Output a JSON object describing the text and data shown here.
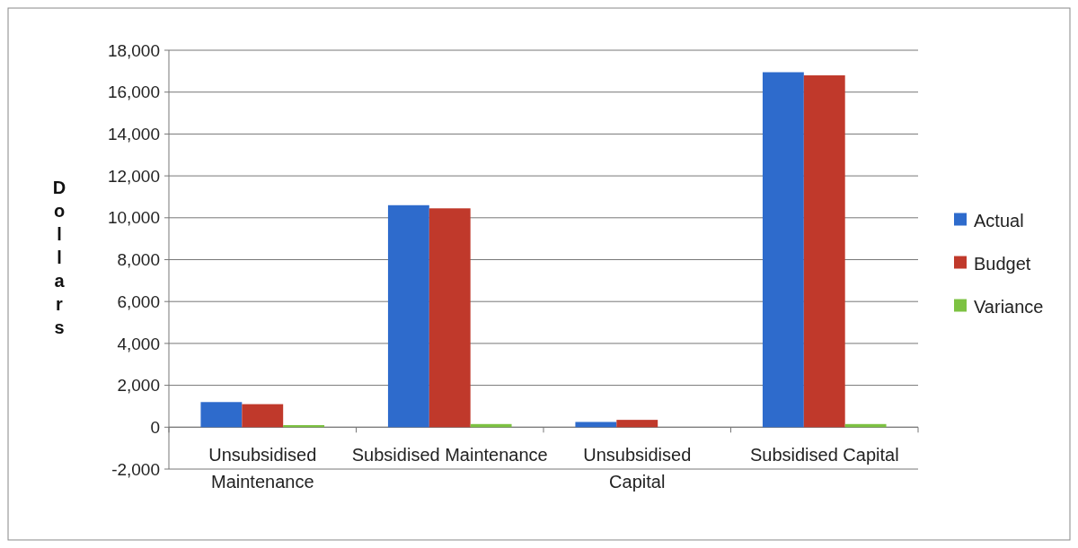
{
  "chart_data": {
    "type": "bar",
    "ylabel": "Dollars",
    "categories": [
      "Unsubsidised Maintenance",
      "Subsidised Maintenance",
      "Unsubsidised Capital",
      "Subsidised Capital"
    ],
    "series": [
      {
        "name": "Actual",
        "color": "#2e6bcc",
        "values": [
          1200,
          10600,
          250,
          16950
        ]
      },
      {
        "name": "Budget",
        "color": "#c0392b",
        "values": [
          1100,
          10450,
          350,
          16800
        ]
      },
      {
        "name": "Variance",
        "color": "#7dc242",
        "values": [
          100,
          150,
          null,
          150
        ]
      }
    ],
    "ylim": [
      -2000,
      18000
    ],
    "yticks": [
      {
        "value": -2000,
        "label": "-2,000"
      },
      0,
      {
        "value": 2000,
        "label": "2,000"
      },
      {
        "value": 4000,
        "label": "4,000"
      },
      {
        "value": 6000,
        "label": "6,000"
      },
      {
        "value": 8000,
        "label": "8,000"
      },
      {
        "value": 10000,
        "label": "10,000"
      },
      {
        "value": 12000,
        "label": "12,000"
      },
      {
        "value": 14000,
        "label": "14,000"
      },
      {
        "value": 16000,
        "label": "16,000"
      },
      {
        "value": 18000,
        "label": "18,000"
      }
    ],
    "grid": "y",
    "legend": "right"
  }
}
